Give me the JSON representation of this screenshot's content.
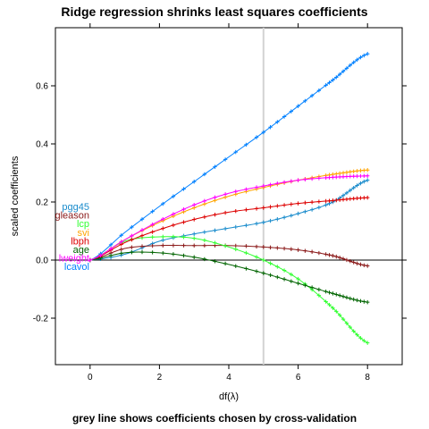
{
  "chart_data": {
    "type": "line",
    "title": "Ridge regression shrinks least squares coefficients",
    "caption": "grey line shows coefficients chosen by cross-validation",
    "xlabel": "df(λ)",
    "ylabel": "scaled coefficients",
    "xlim": [
      -1,
      9
    ],
    "ylim": [
      -0.36,
      0.8
    ],
    "x_ticks": [
      0,
      2,
      4,
      6,
      8
    ],
    "y_ticks": [
      -0.2,
      0.0,
      0.2,
      0.4,
      0.6
    ],
    "y_tick_labels": [
      "-0.2",
      "0.0",
      "0.2",
      "0.4",
      "0.6"
    ],
    "x_tick_labels": [
      "0",
      "2",
      "4",
      "6",
      "8"
    ],
    "reference_lines": {
      "horizontal_y": 0.0,
      "vertical_x": 5.0,
      "vertical_color": "#d3d3d3"
    },
    "grid": false,
    "x": [
      0,
      1,
      2,
      3,
      4,
      5,
      6,
      7,
      8
    ],
    "series": [
      {
        "name": "pgg45",
        "color": "#1a8ccc",
        "values": [
          0.0,
          0.02,
          0.065,
          0.09,
          0.11,
          0.13,
          0.16,
          0.2,
          0.275
        ]
      },
      {
        "name": "lcavol",
        "color": "#0080ff",
        "values": [
          0.0,
          0.095,
          0.185,
          0.27,
          0.355,
          0.44,
          0.53,
          0.62,
          0.71
        ]
      },
      {
        "name": "gleason",
        "color": "#8b1a1a",
        "values": [
          0.0,
          0.04,
          0.05,
          0.05,
          0.05,
          0.045,
          0.035,
          0.015,
          -0.02
        ]
      },
      {
        "name": "lcp",
        "color": "#33ff33",
        "values": [
          0.0,
          0.065,
          0.08,
          0.075,
          0.045,
          0.0,
          -0.065,
          -0.165,
          -0.285
        ]
      },
      {
        "name": "svi",
        "color": "#ffa500",
        "values": [
          0.0,
          0.07,
          0.13,
          0.18,
          0.22,
          0.25,
          0.275,
          0.295,
          0.31
        ]
      },
      {
        "name": "lbph",
        "color": "#dd0000",
        "values": [
          0.0,
          0.06,
          0.105,
          0.14,
          0.165,
          0.18,
          0.195,
          0.205,
          0.215
        ]
      },
      {
        "name": "age",
        "color": "#006400",
        "values": [
          0.0,
          0.025,
          0.025,
          0.01,
          -0.015,
          -0.045,
          -0.08,
          -0.115,
          -0.145
        ]
      },
      {
        "name": "lweight",
        "color": "#ff00ff",
        "values": [
          0.0,
          0.07,
          0.135,
          0.19,
          0.23,
          0.255,
          0.275,
          0.285,
          0.29
        ]
      }
    ],
    "label_order": [
      "pgg45",
      "gleason",
      "lcp",
      "svi",
      "lbph",
      "age",
      "lweight",
      "lcavol"
    ]
  }
}
